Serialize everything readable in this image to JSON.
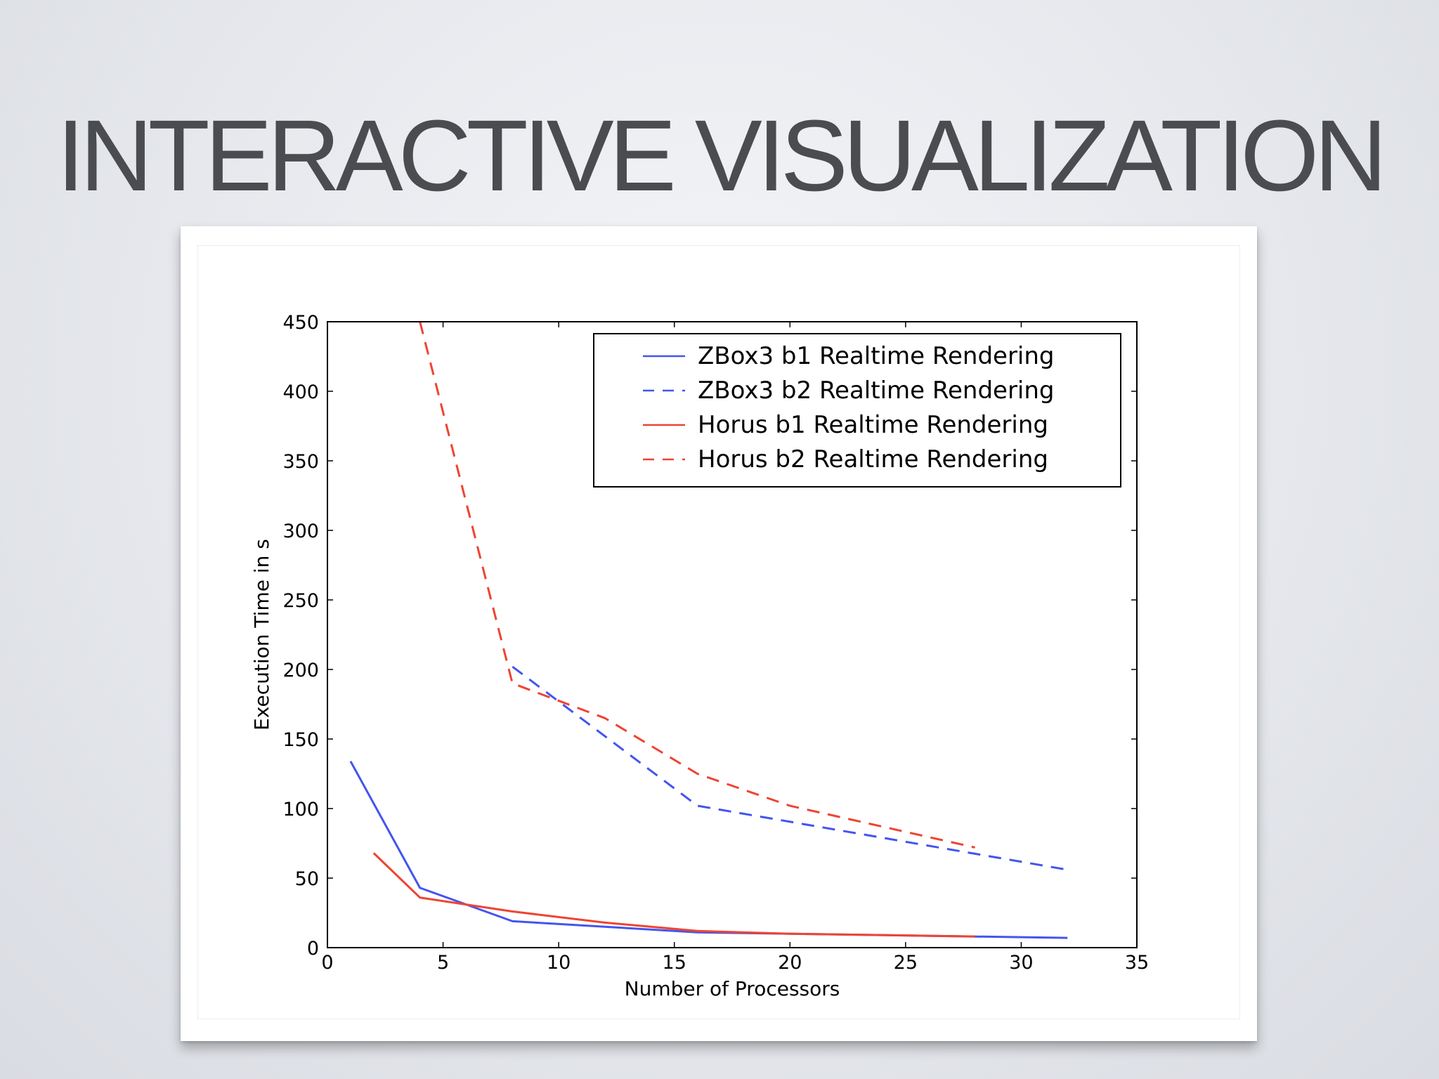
{
  "slide": {
    "title": "INTERACTIVE VISUALIZATION"
  },
  "chart_data": {
    "type": "line",
    "title": "",
    "xlabel": "Number of Processors",
    "ylabel": "Execution Time in s",
    "xlim": [
      0,
      35
    ],
    "ylim": [
      0,
      450
    ],
    "xticks": [
      0,
      5,
      10,
      15,
      20,
      25,
      30,
      35
    ],
    "yticks": [
      0,
      50,
      100,
      150,
      200,
      250,
      300,
      350,
      400,
      450
    ],
    "grid": false,
    "legend_position": "top-right",
    "series": [
      {
        "name": "ZBox3 b1 Realtime Rendering",
        "color": "#4455ee",
        "dash": "solid",
        "x": [
          1,
          4,
          8,
          16,
          32
        ],
        "y": [
          134,
          43,
          19,
          11,
          7
        ]
      },
      {
        "name": "ZBox3 b2 Realtime Rendering",
        "color": "#4455ee",
        "dash": "dashed",
        "x": [
          8,
          16,
          32
        ],
        "y": [
          202,
          102,
          56
        ]
      },
      {
        "name": "Horus b1 Realtime Rendering",
        "color": "#ee4433",
        "dash": "solid",
        "x": [
          2,
          4,
          8,
          12,
          16,
          20,
          24,
          28
        ],
        "y": [
          68,
          36,
          26,
          18,
          12,
          10,
          9,
          8
        ]
      },
      {
        "name": "Horus b2 Realtime Rendering",
        "color": "#ee4433",
        "dash": "dashed",
        "x": [
          4,
          8,
          12,
          16,
          20,
          24,
          28
        ],
        "y": [
          450,
          190,
          165,
          125,
          102,
          87,
          72
        ]
      }
    ]
  }
}
